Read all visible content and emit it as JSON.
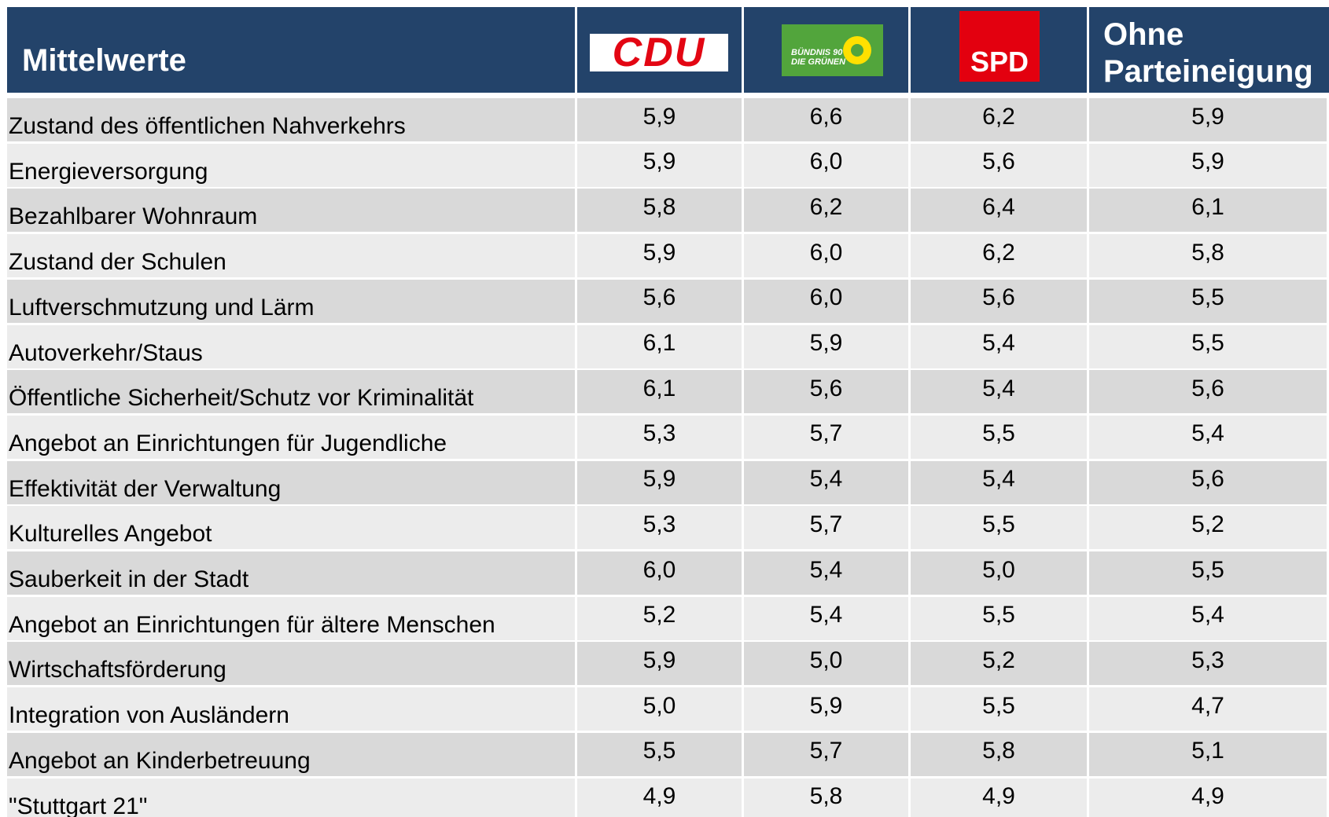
{
  "header": {
    "title": "Mittelwerte",
    "columns": [
      {
        "logo": "CDU"
      },
      {
        "logo_lines": [
          "BÜNDNIS 90",
          "DIE GRÜNEN"
        ]
      },
      {
        "logo": "SPD"
      },
      {
        "label_lines": [
          "Ohne",
          "Parteineigung"
        ]
      }
    ]
  },
  "table": {
    "rows": [
      [
        "Zustand des öffentlichen Nahverkehrs",
        "5,9",
        "6,6",
        "6,2",
        "5,9"
      ],
      [
        "Energieversorgung",
        "5,9",
        "6,0",
        "5,6",
        "5,9"
      ],
      [
        "Bezahlbarer Wohnraum",
        "5,8",
        "6,2",
        "6,4",
        "6,1"
      ],
      [
        "Zustand der Schulen",
        "5,9",
        "6,0",
        "6,2",
        "5,8"
      ],
      [
        "Luftverschmutzung und Lärm",
        "5,6",
        "6,0",
        "5,6",
        "5,5"
      ],
      [
        "Autoverkehr/Staus",
        "6,1",
        "5,9",
        "5,4",
        "5,5"
      ],
      [
        "Öffentliche Sicherheit/Schutz vor Kriminalität",
        "6,1",
        "5,6",
        "5,4",
        "5,6"
      ],
      [
        "Angebot an Einrichtungen für Jugendliche",
        "5,3",
        "5,7",
        "5,5",
        "5,4"
      ],
      [
        "Effektivität der Verwaltung",
        "5,9",
        "5,4",
        "5,4",
        "5,6"
      ],
      [
        "Kulturelles Angebot",
        "5,3",
        "5,7",
        "5,5",
        "5,2"
      ],
      [
        "Sauberkeit in der Stadt",
        "6,0",
        "5,4",
        "5,0",
        "5,5"
      ],
      [
        "Angebot an Einrichtungen für ältere Menschen",
        "5,2",
        "5,4",
        "5,5",
        "5,4"
      ],
      [
        "Wirtschaftsförderung",
        "5,9",
        "5,0",
        "5,2",
        "5,3"
      ],
      [
        "Integration von Ausländern",
        "5,0",
        "5,9",
        "5,5",
        "4,7"
      ],
      [
        "Angebot an Kinderbetreuung",
        "5,5",
        "5,7",
        "5,8",
        "5,1"
      ],
      [
        "\"Stuttgart 21\"",
        "4,9",
        "5,8",
        "4,9",
        "4,9"
      ]
    ]
  }
}
